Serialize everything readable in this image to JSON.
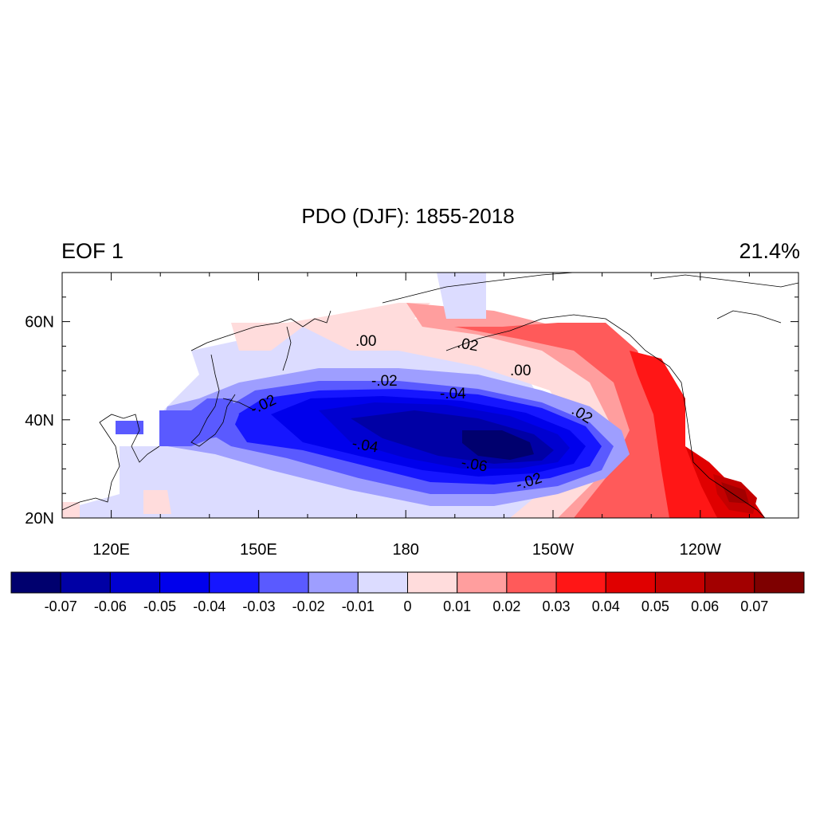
{
  "title": "PDO (DJF): 1855-2018",
  "left_string": "EOF 1",
  "right_string": "21.4%",
  "map": {
    "lon_ticks": [
      {
        "lon": 120,
        "label": "120E"
      },
      {
        "lon": 150,
        "label": "150E"
      },
      {
        "lon": 180,
        "label": "180"
      },
      {
        "lon": 210,
        "label": "150W"
      },
      {
        "lon": 240,
        "label": "120W"
      }
    ],
    "lat_ticks": [
      {
        "lat": 20,
        "label": "20N"
      },
      {
        "lat": 40,
        "label": "40N"
      },
      {
        "lat": 60,
        "label": "60N"
      }
    ],
    "lon_range": [
      110,
      260
    ],
    "lat_range": [
      20,
      70
    ]
  },
  "contour_labels": [
    ".00",
    ".02",
    "-.02",
    ".00",
    "-.02",
    "-.04",
    "-.02",
    ".02",
    "-.04",
    "-.06",
    "-.02"
  ],
  "colorbar": {
    "colors": [
      "#00006e",
      "#0000a5",
      "#0000d0",
      "#0000ec",
      "#1616ff",
      "#5a5aff",
      "#9e9eff",
      "#dcdcff",
      "#ffdcdc",
      "#ff9e9e",
      "#ff5a5a",
      "#ff1616",
      "#e00000",
      "#c40000",
      "#a20000",
      "#7e0000"
    ],
    "labels": [
      "-0.07",
      "-0.06",
      "-0.05",
      "-0.04",
      "-0.03",
      "-0.02",
      "-0.01",
      "0",
      "0.01",
      "0.02",
      "0.03",
      "0.04",
      "0.05",
      "0.06",
      "0.07"
    ]
  }
}
